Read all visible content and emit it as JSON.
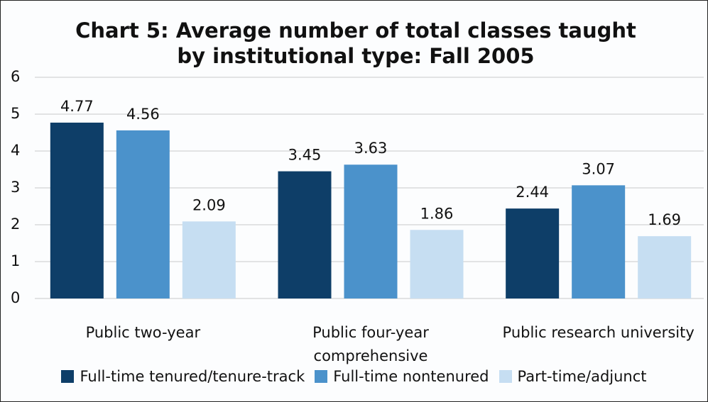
{
  "chart_data": {
    "type": "bar",
    "title": "Chart 5: Average number of total classes taught",
    "subtitle": "by institutional type: Fall 2005",
    "categories": [
      "Public two-year",
      "Public four-year comprehensive",
      "Public research university"
    ],
    "series": [
      {
        "name": "Full-time tenured/tenure-track",
        "color": "#0e3e68",
        "values": [
          4.77,
          3.45,
          2.44
        ]
      },
      {
        "name": "Full-time nontenured",
        "color": "#4b92cb",
        "values": [
          4.56,
          3.63,
          3.07
        ]
      },
      {
        "name": "Part-time/adjunct",
        "color": "#c6def2",
        "values": [
          2.09,
          1.86,
          1.69
        ]
      }
    ],
    "ylim": [
      0,
      6
    ],
    "yticks": [
      0,
      1,
      2,
      3,
      4,
      5,
      6
    ],
    "grid": true,
    "legend": "bottom"
  }
}
